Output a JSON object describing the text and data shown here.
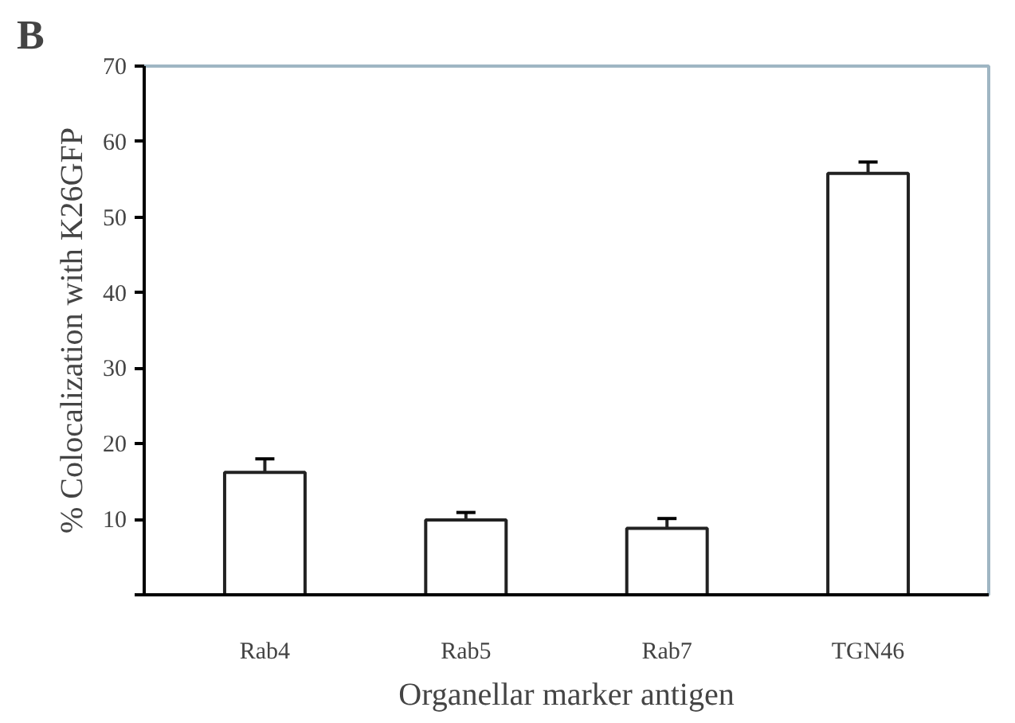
{
  "chart_data": {
    "type": "bar",
    "title": "B",
    "xlabel": "Organellar marker antigen",
    "ylabel": "% Colocalization with K26GFP",
    "categories": [
      "Rab4",
      "Rab5",
      "Rab7",
      "TGN46"
    ],
    "series": [
      {
        "color": "#ffffff",
        "values": [
          16.2,
          9.9,
          8.8,
          55.8
        ],
        "errors": [
          1.8,
          1.0,
          1.3,
          1.5
        ]
      }
    ],
    "ylim": [
      0,
      70
    ],
    "yticks": [
      {
        "value": 0,
        "label": null
      },
      10,
      20,
      30,
      40,
      50,
      60,
      70
    ],
    "grid": false
  }
}
